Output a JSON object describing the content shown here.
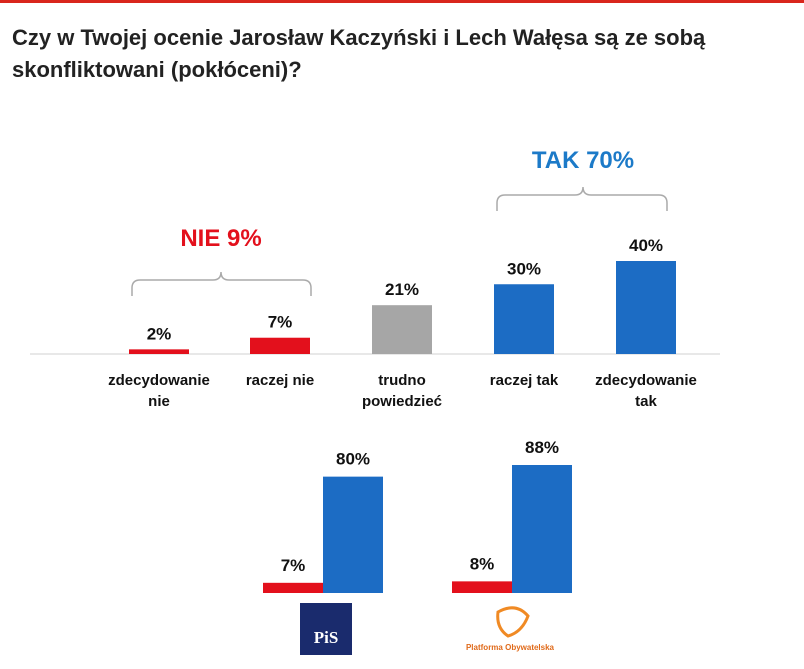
{
  "chart_data": [
    {
      "type": "bar",
      "title": "Czy w Twojej ocenie Jarosław Kaczyński i Lech Wałęsa są ze sobą\nskonfliktowani (pokłóceni)?",
      "categories": [
        "zdecydowanie\nnie",
        "raczej nie",
        "trudno\npowiedzieć",
        "raczej tak",
        "zdecydowanie\ntak"
      ],
      "values": [
        2,
        7,
        21,
        30,
        40
      ],
      "value_labels": [
        "2%",
        "7%",
        "21%",
        "30%",
        "40%"
      ],
      "colors": [
        "#e3101c",
        "#e3101c",
        "#a6a6a6",
        "#1c6cc4",
        "#1c6cc4"
      ],
      "ylim": [
        0,
        40
      ],
      "annotations": [
        {
          "text": "NIE 9%",
          "color": "#e3101c"
        },
        {
          "text": "TAK 70%",
          "color": "#1c7ac8"
        }
      ]
    },
    {
      "type": "grouped-bar",
      "categories": [
        "PiS",
        "Platforma Obywatelska"
      ],
      "series": [
        {
          "color": "#e3101c",
          "values": [
            7,
            8
          ],
          "value_labels": [
            "7%",
            "8%"
          ]
        },
        {
          "color": "#1c6cc4",
          "values": [
            80,
            88
          ],
          "value_labels": [
            "80%",
            "88%"
          ]
        }
      ],
      "ylim": [
        0,
        88
      ]
    }
  ]
}
